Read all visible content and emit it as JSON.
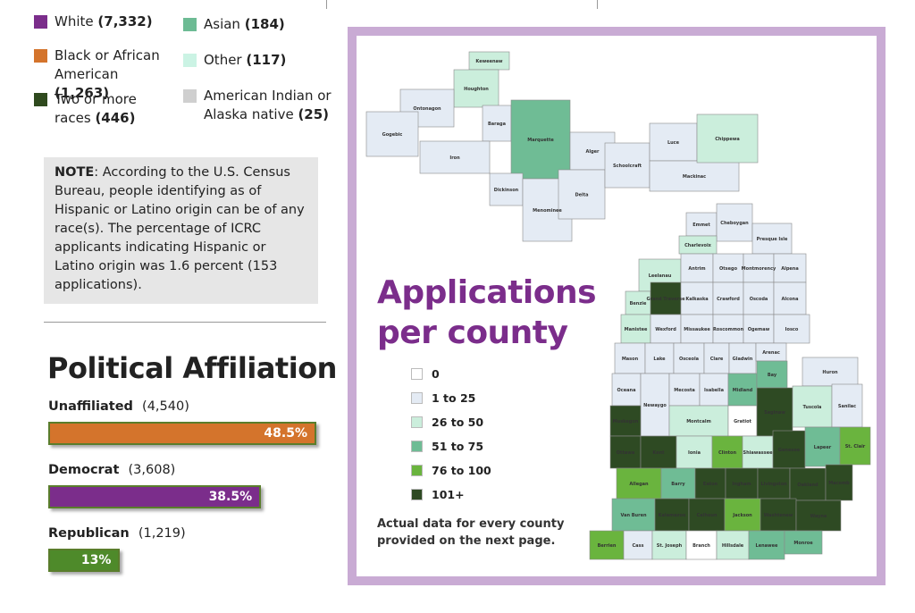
{
  "race_legend": [
    {
      "label": "White",
      "count": "(7,332)",
      "color": "#7b2d8b"
    },
    {
      "label": "Black or African American",
      "count": "(1,263)",
      "color": "#d4742c"
    },
    {
      "label": "Two or more races",
      "count": "(446)",
      "color": "#2f4a1e"
    },
    {
      "label": "Asian",
      "count": "(184)",
      "color": "#6dbb94"
    },
    {
      "label": "Other",
      "count": "(117)",
      "color": "#cbf3e4"
    },
    {
      "label": "American Indian or Alaska native",
      "count": "(25)",
      "color": "#cfcfcf"
    }
  ],
  "note": {
    "lead": "NOTE",
    "text": ":  According to the U.S. Census Bureau, people identifying as of Hispanic or Latino origin can be of any race(s). The percentage of ICRC applicants indicating Hispanic or Latino origin was 1.6 percent (153 applications)."
  },
  "political": {
    "title": "Political Affiliation",
    "bars": [
      {
        "name": "Unaffiliated",
        "count": "(4,540)",
        "percent": 48.5,
        "percent_label": "48.5%",
        "color": "#d4742c"
      },
      {
        "name": "Democrat",
        "count": "(3,608)",
        "percent": 38.5,
        "percent_label": "38.5%",
        "color": "#7b2d8b"
      },
      {
        "name": "Republican",
        "count": "(1,219)",
        "percent": 13,
        "percent_label": "13%",
        "color": "#4e8a2a"
      }
    ]
  },
  "map": {
    "title": "Applications per county",
    "legend": [
      {
        "label": "0",
        "color": "#ffffff"
      },
      {
        "label": "1 to 25",
        "color": "#e4ebf4"
      },
      {
        "label": "26 to 50",
        "color": "#cbeedc"
      },
      {
        "label": "51 to 75",
        "color": "#6fbc95"
      },
      {
        "label": "76 to 100",
        "color": "#6ab43e"
      },
      {
        "label": "101+",
        "color": "#2e4a23"
      }
    ],
    "caption": "Actual data for every county provided on the next page.",
    "counties": [
      {
        "name": "Keweenaw",
        "color": "#cbeedc"
      },
      {
        "name": "Houghton",
        "color": "#cbeedc"
      },
      {
        "name": "Ontonagon",
        "color": "#e4ebf4"
      },
      {
        "name": "Gogebic",
        "color": "#e4ebf4"
      },
      {
        "name": "Baraga",
        "color": "#e4ebf4"
      },
      {
        "name": "Iron",
        "color": "#e4ebf4"
      },
      {
        "name": "Marquette",
        "color": "#6fbc95"
      },
      {
        "name": "Dickinson",
        "color": "#e4ebf4"
      },
      {
        "name": "Menominee",
        "color": "#e4ebf4"
      },
      {
        "name": "Alger",
        "color": "#e4ebf4"
      },
      {
        "name": "Delta",
        "color": "#e4ebf4"
      },
      {
        "name": "Schoolcraft",
        "color": "#e4ebf4"
      },
      {
        "name": "Luce",
        "color": "#e4ebf4"
      },
      {
        "name": "Mackinac",
        "color": "#e4ebf4"
      },
      {
        "name": "Chippewa",
        "color": "#cbeedc"
      },
      {
        "name": "Emmet",
        "color": "#e4ebf4"
      },
      {
        "name": "Cheboygan",
        "color": "#e4ebf4"
      },
      {
        "name": "Presque Isle",
        "color": "#e4ebf4"
      },
      {
        "name": "Charlevoix",
        "color": "#cbeedc"
      },
      {
        "name": "Leelanau",
        "color": "#cbeedc"
      },
      {
        "name": "Antrim",
        "color": "#e4ebf4"
      },
      {
        "name": "Otsego",
        "color": "#e4ebf4"
      },
      {
        "name": "Montmorency",
        "color": "#e4ebf4"
      },
      {
        "name": "Alpena",
        "color": "#e4ebf4"
      },
      {
        "name": "Benzie",
        "color": "#cbeedc"
      },
      {
        "name": "Grand Traverse",
        "color": "#2e4a23"
      },
      {
        "name": "Kalkaska",
        "color": "#e4ebf4"
      },
      {
        "name": "Crawford",
        "color": "#e4ebf4"
      },
      {
        "name": "Oscoda",
        "color": "#e4ebf4"
      },
      {
        "name": "Alcona",
        "color": "#e4ebf4"
      },
      {
        "name": "Manistee",
        "color": "#cbeedc"
      },
      {
        "name": "Wexford",
        "color": "#e4ebf4"
      },
      {
        "name": "Missaukee",
        "color": "#e4ebf4"
      },
      {
        "name": "Roscommon",
        "color": "#e4ebf4"
      },
      {
        "name": "Ogemaw",
        "color": "#e4ebf4"
      },
      {
        "name": "Iosco",
        "color": "#e4ebf4"
      },
      {
        "name": "Mason",
        "color": "#e4ebf4"
      },
      {
        "name": "Lake",
        "color": "#e4ebf4"
      },
      {
        "name": "Osceola",
        "color": "#e4ebf4"
      },
      {
        "name": "Clare",
        "color": "#e4ebf4"
      },
      {
        "name": "Gladwin",
        "color": "#e4ebf4"
      },
      {
        "name": "Arenac",
        "color": "#e4ebf4"
      },
      {
        "name": "Oceana",
        "color": "#e4ebf4"
      },
      {
        "name": "Newaygo",
        "color": "#e4ebf4"
      },
      {
        "name": "Mecosta",
        "color": "#e4ebf4"
      },
      {
        "name": "Isabella",
        "color": "#e4ebf4"
      },
      {
        "name": "Midland",
        "color": "#6fbc95"
      },
      {
        "name": "Bay",
        "color": "#6fbc95"
      },
      {
        "name": "Huron",
        "color": "#e4ebf4"
      },
      {
        "name": "Muskegon",
        "color": "#2e4a23"
      },
      {
        "name": "Montcalm",
        "color": "#cbeedc"
      },
      {
        "name": "Gratiot",
        "color": "#ffffff"
      },
      {
        "name": "Saginaw",
        "color": "#2e4a23"
      },
      {
        "name": "Tuscola",
        "color": "#cbeedc"
      },
      {
        "name": "Sanilac",
        "color": "#e4ebf4"
      },
      {
        "name": "Ottawa",
        "color": "#2e4a23"
      },
      {
        "name": "Kent",
        "color": "#2e4a23"
      },
      {
        "name": "Ionia",
        "color": "#cbeedc"
      },
      {
        "name": "Clinton",
        "color": "#6ab43e"
      },
      {
        "name": "Shiawassee",
        "color": "#cbeedc"
      },
      {
        "name": "Genesee",
        "color": "#2e4a23"
      },
      {
        "name": "Lapeer",
        "color": "#6fbc95"
      },
      {
        "name": "St. Clair",
        "color": "#6ab43e"
      },
      {
        "name": "Allegan",
        "color": "#6ab43e"
      },
      {
        "name": "Barry",
        "color": "#6fbc95"
      },
      {
        "name": "Eaton",
        "color": "#2e4a23"
      },
      {
        "name": "Ingham",
        "color": "#2e4a23"
      },
      {
        "name": "Livingston",
        "color": "#2e4a23"
      },
      {
        "name": "Oakland",
        "color": "#2e4a23"
      },
      {
        "name": "Macomb",
        "color": "#2e4a23"
      },
      {
        "name": "Van Buren",
        "color": "#6fbc95"
      },
      {
        "name": "Kalamazoo",
        "color": "#2e4a23"
      },
      {
        "name": "Calhoun",
        "color": "#2e4a23"
      },
      {
        "name": "Jackson",
        "color": "#6ab43e"
      },
      {
        "name": "Washtenaw",
        "color": "#2e4a23"
      },
      {
        "name": "Wayne",
        "color": "#2e4a23"
      },
      {
        "name": "Berrien",
        "color": "#6ab43e"
      },
      {
        "name": "Cass",
        "color": "#e4ebf4"
      },
      {
        "name": "St. Joseph",
        "color": "#cbeedc"
      },
      {
        "name": "Branch",
        "color": "#ffffff"
      },
      {
        "name": "Hillsdale",
        "color": "#cbeedc"
      },
      {
        "name": "Lenawee",
        "color": "#6fbc95"
      },
      {
        "name": "Monroe",
        "color": "#6fbc95"
      }
    ]
  }
}
